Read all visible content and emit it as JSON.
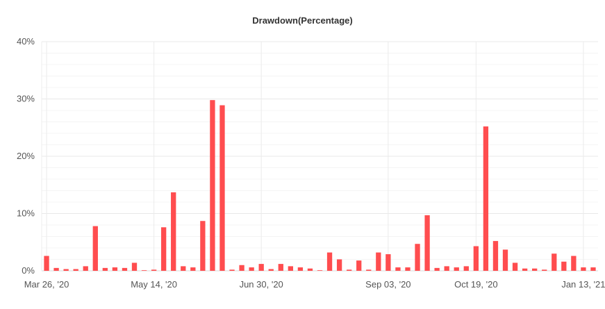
{
  "chart_data": {
    "type": "bar",
    "title": "Drawdown(Percentage)",
    "xlabel": "",
    "ylabel": "",
    "ylim": [
      0,
      40
    ],
    "y_ticks": [
      0,
      10,
      20,
      30,
      40
    ],
    "y_tick_labels": [
      "0%",
      "10%",
      "20%",
      "30%",
      "40%"
    ],
    "x_tick_labels": [
      "Mar 26, '20",
      "May 14, '20",
      "Jun 30, '20",
      "Sep 03, '20",
      "Oct 19, '20",
      "Jan 13, '21"
    ],
    "x_tick_positions": [
      0,
      11,
      22,
      35,
      44,
      55
    ],
    "bar_color": "#ff4d4f",
    "grid": true,
    "legend": "none",
    "values": [
      2.6,
      0.5,
      0.3,
      0.3,
      0.8,
      7.8,
      0.5,
      0.6,
      0.5,
      1.4,
      0.1,
      0.2,
      7.6,
      13.7,
      0.8,
      0.6,
      8.7,
      29.8,
      28.9,
      0.2,
      1.0,
      0.6,
      1.2,
      0.3,
      1.2,
      0.8,
      0.6,
      0.4,
      0.1,
      3.2,
      2.0,
      0.2,
      1.8,
      0.2,
      3.2,
      2.9,
      0.6,
      0.6,
      4.7,
      9.7,
      0.5,
      0.8,
      0.6,
      0.8,
      4.3,
      25.2,
      5.2,
      3.7,
      1.4,
      0.4,
      0.4,
      0.2,
      3.0,
      1.6,
      2.6,
      0.6,
      0.6
    ]
  }
}
